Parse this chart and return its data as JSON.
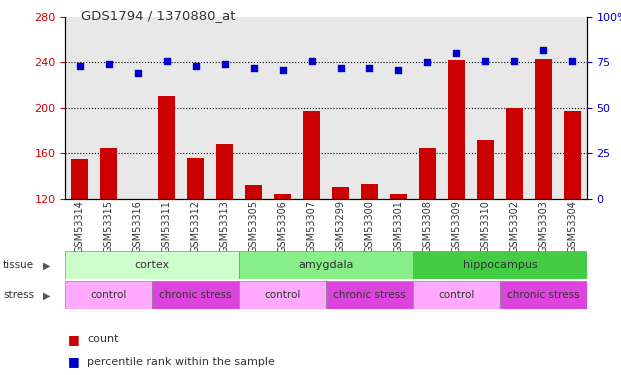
{
  "title": "GDS1794 / 1370880_at",
  "samples": [
    "GSM53314",
    "GSM53315",
    "GSM53316",
    "GSM53311",
    "GSM53312",
    "GSM53313",
    "GSM53305",
    "GSM53306",
    "GSM53307",
    "GSM53299",
    "GSM53300",
    "GSM53301",
    "GSM53308",
    "GSM53309",
    "GSM53310",
    "GSM53302",
    "GSM53303",
    "GSM53304"
  ],
  "counts": [
    155,
    165,
    120,
    210,
    156,
    168,
    132,
    124,
    197,
    130,
    133,
    124,
    165,
    242,
    172,
    200,
    243,
    197
  ],
  "percentiles": [
    73,
    74,
    69,
    76,
    73,
    74,
    72,
    71,
    76,
    72,
    72,
    71,
    75,
    80,
    76,
    76,
    82,
    76
  ],
  "ylim_left": [
    120,
    280
  ],
  "ylim_right": [
    0,
    100
  ],
  "yticks_left": [
    120,
    160,
    200,
    240,
    280
  ],
  "yticks_right": [
    0,
    25,
    50,
    75,
    100
  ],
  "bar_color": "#cc0000",
  "dot_color": "#0000cc",
  "tissue_groups": [
    {
      "label": "cortex",
      "start": 0,
      "end": 6,
      "color": "#ccffcc"
    },
    {
      "label": "amygdala",
      "start": 6,
      "end": 12,
      "color": "#88ee88"
    },
    {
      "label": "hippocampus",
      "start": 12,
      "end": 18,
      "color": "#44cc44"
    }
  ],
  "stress_groups": [
    {
      "label": "control",
      "start": 0,
      "end": 3,
      "color": "#ffaaff"
    },
    {
      "label": "chronic stress",
      "start": 3,
      "end": 6,
      "color": "#dd44dd"
    },
    {
      "label": "control",
      "start": 6,
      "end": 9,
      "color": "#ffaaff"
    },
    {
      "label": "chronic stress",
      "start": 9,
      "end": 12,
      "color": "#dd44dd"
    },
    {
      "label": "control",
      "start": 12,
      "end": 15,
      "color": "#ffaaff"
    },
    {
      "label": "chronic stress",
      "start": 15,
      "end": 18,
      "color": "#dd44dd"
    }
  ],
  "bg_color": "#ffffff",
  "plot_bg_color": "#e8e8e8",
  "grid_color": "#000000",
  "tick_label_color_left": "#cc0000",
  "tick_label_color_right": "#0000cc"
}
